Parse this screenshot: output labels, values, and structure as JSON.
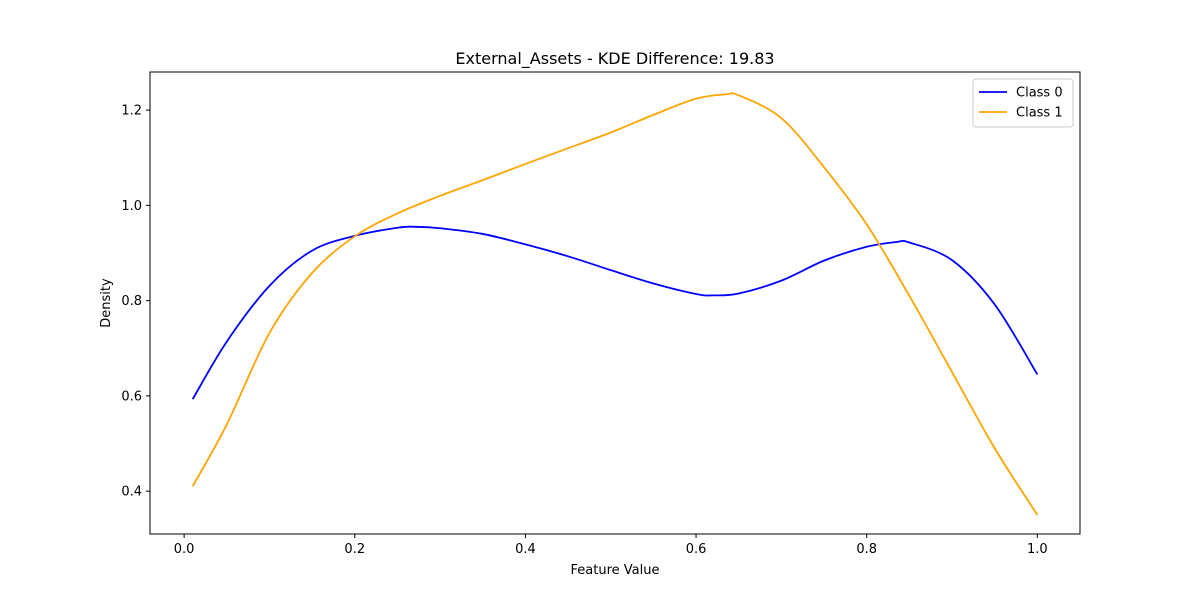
{
  "chart_data": {
    "type": "line",
    "title": "External_Assets - KDE Difference: 19.83",
    "xlabel": "Feature Value",
    "ylabel": "Density",
    "xlim": [
      -0.04,
      1.05
    ],
    "ylim": [
      0.31,
      1.28
    ],
    "xticks": [
      0.0,
      0.2,
      0.4,
      0.6,
      0.8,
      1.0
    ],
    "xtick_labels": [
      "0.0",
      "0.2",
      "0.4",
      "0.6",
      "0.8",
      "1.0"
    ],
    "yticks": [
      0.4,
      0.6,
      0.8,
      1.0,
      1.2
    ],
    "ytick_labels": [
      "0.4",
      "0.6",
      "0.8",
      "1.0",
      "1.2"
    ],
    "grid": false,
    "legend_position": "top-right",
    "series": [
      {
        "name": "Class 0",
        "color": "#0000ff",
        "x": [
          0.01,
          0.05,
          0.1,
          0.15,
          0.2,
          0.25,
          0.27,
          0.3,
          0.35,
          0.4,
          0.45,
          0.5,
          0.55,
          0.6,
          0.62,
          0.65,
          0.7,
          0.75,
          0.8,
          0.835,
          0.85,
          0.9,
          0.95,
          1.0
        ],
        "y": [
          0.593,
          0.714,
          0.831,
          0.905,
          0.936,
          0.953,
          0.955,
          0.952,
          0.94,
          0.918,
          0.893,
          0.864,
          0.836,
          0.814,
          0.811,
          0.815,
          0.842,
          0.884,
          0.913,
          0.923,
          0.922,
          0.885,
          0.792,
          0.645
        ]
      },
      {
        "name": "Class 1",
        "color": "#ffa500",
        "x": [
          0.01,
          0.05,
          0.1,
          0.15,
          0.2,
          0.25,
          0.3,
          0.35,
          0.4,
          0.45,
          0.5,
          0.55,
          0.6,
          0.635,
          0.65,
          0.7,
          0.75,
          0.8,
          0.85,
          0.9,
          0.95,
          1.0
        ],
        "y": [
          0.41,
          0.54,
          0.732,
          0.858,
          0.935,
          0.983,
          1.02,
          1.053,
          1.087,
          1.12,
          1.153,
          1.19,
          1.224,
          1.233,
          1.231,
          1.183,
          1.08,
          0.96,
          0.81,
          0.65,
          0.49,
          0.35
        ]
      }
    ]
  }
}
